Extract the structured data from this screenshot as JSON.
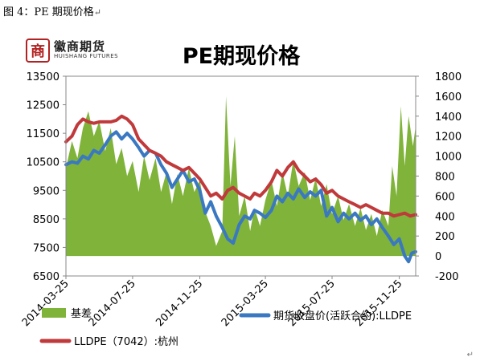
{
  "caption": {
    "text": "图 4：PE 期现价格",
    "mark": "↵"
  },
  "return_mark": "↵",
  "logo": {
    "seal": "商",
    "name_cn": "徽商期货",
    "name_en": "HUISHANG FUTURES"
  },
  "colors": {
    "basis": "#7fb33a",
    "futures": "#3a78c2",
    "spot": "#c0393b"
  },
  "chart_data": {
    "type": "line",
    "title": "PE期现价格",
    "x_tick_labels": [
      "2014-03-25",
      "2014-07-25",
      "2014-11-25",
      "2015-03-25",
      "2015-07-25",
      "2015-11-25"
    ],
    "x_range": [
      "2014-03-25",
      "2015-12-25"
    ],
    "y_left": {
      "min": 6500,
      "max": 13500,
      "ticks": [
        6500,
        7500,
        8500,
        9500,
        10500,
        11500,
        12500,
        13500
      ]
    },
    "y_right": {
      "min": -200,
      "max": 1800,
      "ticks": [
        -200,
        0,
        200,
        400,
        600,
        800,
        1000,
        1200,
        1400,
        1600,
        1800
      ]
    },
    "legend_position": "bottom",
    "series": [
      {
        "name": "基差",
        "kind": "area",
        "axis": "right",
        "points": [
          [
            "2014-03-25",
            880
          ],
          [
            "2014-04-05",
            1150
          ],
          [
            "2014-04-15",
            980
          ],
          [
            "2014-04-25",
            1280
          ],
          [
            "2014-05-05",
            1450
          ],
          [
            "2014-05-15",
            1200
          ],
          [
            "2014-05-25",
            1350
          ],
          [
            "2014-06-05",
            1050
          ],
          [
            "2014-06-15",
            1280
          ],
          [
            "2014-06-25",
            920
          ],
          [
            "2014-07-05",
            1080
          ],
          [
            "2014-07-15",
            800
          ],
          [
            "2014-07-25",
            950
          ],
          [
            "2014-08-05",
            640
          ],
          [
            "2014-08-15",
            1000
          ],
          [
            "2014-08-25",
            760
          ],
          [
            "2014-09-05",
            980
          ],
          [
            "2014-09-15",
            640
          ],
          [
            "2014-09-25",
            840
          ],
          [
            "2014-10-05",
            520
          ],
          [
            "2014-10-15",
            820
          ],
          [
            "2014-10-25",
            600
          ],
          [
            "2014-11-05",
            880
          ],
          [
            "2014-11-15",
            640
          ],
          [
            "2014-11-25",
            760
          ],
          [
            "2014-12-05",
            440
          ],
          [
            "2014-12-15",
            300
          ],
          [
            "2014-12-25",
            100
          ],
          [
            "2015-01-05",
            250
          ],
          [
            "2015-01-12",
            1600
          ],
          [
            "2015-01-20",
            700
          ],
          [
            "2015-01-28",
            1200
          ],
          [
            "2015-02-05",
            400
          ],
          [
            "2015-02-15",
            600
          ],
          [
            "2015-02-25",
            250
          ],
          [
            "2015-03-05",
            480
          ],
          [
            "2015-03-15",
            300
          ],
          [
            "2015-03-25",
            560
          ],
          [
            "2015-04-05",
            760
          ],
          [
            "2015-04-15",
            500
          ],
          [
            "2015-04-25",
            840
          ],
          [
            "2015-05-05",
            600
          ],
          [
            "2015-05-15",
            960
          ],
          [
            "2015-05-25",
            700
          ],
          [
            "2015-06-05",
            840
          ],
          [
            "2015-06-15",
            560
          ],
          [
            "2015-06-25",
            780
          ],
          [
            "2015-07-05",
            500
          ],
          [
            "2015-07-15",
            720
          ],
          [
            "2015-07-25",
            420
          ],
          [
            "2015-08-05",
            600
          ],
          [
            "2015-08-15",
            360
          ],
          [
            "2015-08-25",
            520
          ],
          [
            "2015-09-05",
            300
          ],
          [
            "2015-09-15",
            480
          ],
          [
            "2015-09-25",
            260
          ],
          [
            "2015-10-05",
            420
          ],
          [
            "2015-10-15",
            200
          ],
          [
            "2015-10-25",
            460
          ],
          [
            "2015-11-05",
            300
          ],
          [
            "2015-11-12",
            900
          ],
          [
            "2015-11-20",
            600
          ],
          [
            "2015-11-28",
            1500
          ],
          [
            "2015-12-05",
            900
          ],
          [
            "2015-12-12",
            1400
          ],
          [
            "2015-12-20",
            1100
          ],
          [
            "2015-12-25",
            1300
          ]
        ]
      },
      {
        "name": "期货收盘价(活跃合约):LLDPE",
        "kind": "line",
        "axis": "left",
        "points": [
          [
            "2014-03-25",
            10400
          ],
          [
            "2014-04-05",
            10500
          ],
          [
            "2014-04-15",
            10450
          ],
          [
            "2014-04-25",
            10700
          ],
          [
            "2014-05-05",
            10600
          ],
          [
            "2014-05-15",
            10900
          ],
          [
            "2014-05-25",
            10800
          ],
          [
            "2014-06-05",
            11100
          ],
          [
            "2014-06-15",
            11400
          ],
          [
            "2014-06-25",
            11550
          ],
          [
            "2014-07-05",
            11300
          ],
          [
            "2014-07-15",
            11500
          ],
          [
            "2014-07-25",
            11300
          ],
          [
            "2014-08-05",
            11000
          ],
          [
            "2014-08-15",
            10700
          ],
          [
            "2014-08-25",
            10900
          ],
          [
            "2014-09-05",
            10800
          ],
          [
            "2014-09-15",
            10400
          ],
          [
            "2014-09-25",
            10100
          ],
          [
            "2014-10-05",
            9600
          ],
          [
            "2014-10-15",
            9900
          ],
          [
            "2014-10-25",
            10200
          ],
          [
            "2014-11-05",
            9800
          ],
          [
            "2014-11-15",
            9900
          ],
          [
            "2014-11-25",
            9500
          ],
          [
            "2014-12-05",
            8700
          ],
          [
            "2014-12-15",
            9100
          ],
          [
            "2014-12-25",
            8600
          ],
          [
            "2015-01-05",
            8200
          ],
          [
            "2015-01-15",
            7800
          ],
          [
            "2015-01-25",
            7650
          ],
          [
            "2015-02-05",
            8300
          ],
          [
            "2015-02-15",
            8600
          ],
          [
            "2015-02-25",
            8500
          ],
          [
            "2015-03-05",
            8800
          ],
          [
            "2015-03-15",
            8700
          ],
          [
            "2015-03-25",
            8550
          ],
          [
            "2015-04-05",
            8800
          ],
          [
            "2015-04-15",
            9300
          ],
          [
            "2015-04-25",
            9100
          ],
          [
            "2015-05-05",
            9400
          ],
          [
            "2015-05-15",
            9200
          ],
          [
            "2015-05-25",
            9550
          ],
          [
            "2015-06-05",
            9250
          ],
          [
            "2015-06-15",
            9450
          ],
          [
            "2015-06-25",
            9300
          ],
          [
            "2015-07-05",
            9500
          ],
          [
            "2015-07-15",
            8600
          ],
          [
            "2015-07-25",
            8900
          ],
          [
            "2015-08-05",
            8400
          ],
          [
            "2015-08-15",
            8700
          ],
          [
            "2015-08-25",
            8500
          ],
          [
            "2015-09-05",
            8700
          ],
          [
            "2015-09-15",
            8450
          ],
          [
            "2015-09-25",
            8600
          ],
          [
            "2015-10-05",
            8300
          ],
          [
            "2015-10-15",
            8500
          ],
          [
            "2015-10-25",
            8200
          ],
          [
            "2015-11-05",
            7900
          ],
          [
            "2015-11-15",
            7600
          ],
          [
            "2015-11-25",
            7800
          ],
          [
            "2015-12-05",
            7200
          ],
          [
            "2015-12-12",
            7000
          ],
          [
            "2015-12-18",
            7300
          ],
          [
            "2015-12-25",
            7350
          ]
        ]
      },
      {
        "name": "LLDPE（7042）:杭州",
        "kind": "line",
        "axis": "left",
        "points": [
          [
            "2014-03-25",
            11200
          ],
          [
            "2014-04-05",
            11400
          ],
          [
            "2014-04-15",
            11800
          ],
          [
            "2014-04-25",
            12000
          ],
          [
            "2014-05-05",
            11900
          ],
          [
            "2014-05-15",
            11850
          ],
          [
            "2014-05-25",
            11900
          ],
          [
            "2014-06-05",
            11900
          ],
          [
            "2014-06-15",
            11900
          ],
          [
            "2014-06-25",
            11950
          ],
          [
            "2014-07-05",
            12100
          ],
          [
            "2014-07-15",
            12000
          ],
          [
            "2014-07-25",
            11800
          ],
          [
            "2014-08-05",
            11300
          ],
          [
            "2014-08-15",
            11100
          ],
          [
            "2014-08-25",
            10900
          ],
          [
            "2014-09-05",
            10800
          ],
          [
            "2014-09-15",
            10700
          ],
          [
            "2014-09-25",
            10500
          ],
          [
            "2014-10-05",
            10400
          ],
          [
            "2014-10-15",
            10300
          ],
          [
            "2014-10-25",
            10200
          ],
          [
            "2014-11-05",
            10300
          ],
          [
            "2014-11-15",
            10100
          ],
          [
            "2014-11-25",
            9900
          ],
          [
            "2014-12-05",
            9600
          ],
          [
            "2014-12-15",
            9300
          ],
          [
            "2014-12-25",
            9400
          ],
          [
            "2015-01-05",
            9200
          ],
          [
            "2015-01-15",
            9500
          ],
          [
            "2015-01-25",
            9600
          ],
          [
            "2015-02-05",
            9400
          ],
          [
            "2015-02-15",
            9300
          ],
          [
            "2015-02-25",
            9200
          ],
          [
            "2015-03-05",
            9400
          ],
          [
            "2015-03-15",
            9300
          ],
          [
            "2015-03-25",
            9500
          ],
          [
            "2015-04-05",
            9800
          ],
          [
            "2015-04-15",
            10200
          ],
          [
            "2015-04-25",
            10000
          ],
          [
            "2015-05-05",
            10300
          ],
          [
            "2015-05-15",
            10500
          ],
          [
            "2015-05-25",
            10200
          ],
          [
            "2015-06-05",
            10000
          ],
          [
            "2015-06-15",
            9800
          ],
          [
            "2015-06-25",
            9900
          ],
          [
            "2015-07-05",
            9700
          ],
          [
            "2015-07-15",
            9400
          ],
          [
            "2015-07-25",
            9500
          ],
          [
            "2015-08-05",
            9300
          ],
          [
            "2015-08-15",
            9200
          ],
          [
            "2015-08-25",
            9100
          ],
          [
            "2015-09-05",
            9000
          ],
          [
            "2015-09-15",
            8900
          ],
          [
            "2015-09-25",
            9000
          ],
          [
            "2015-10-05",
            8900
          ],
          [
            "2015-10-15",
            8800
          ],
          [
            "2015-10-25",
            8700
          ],
          [
            "2015-11-05",
            8700
          ],
          [
            "2015-11-15",
            8600
          ],
          [
            "2015-11-25",
            8650
          ],
          [
            "2015-12-05",
            8700
          ],
          [
            "2015-12-15",
            8600
          ],
          [
            "2015-12-25",
            8650
          ]
        ]
      }
    ]
  }
}
